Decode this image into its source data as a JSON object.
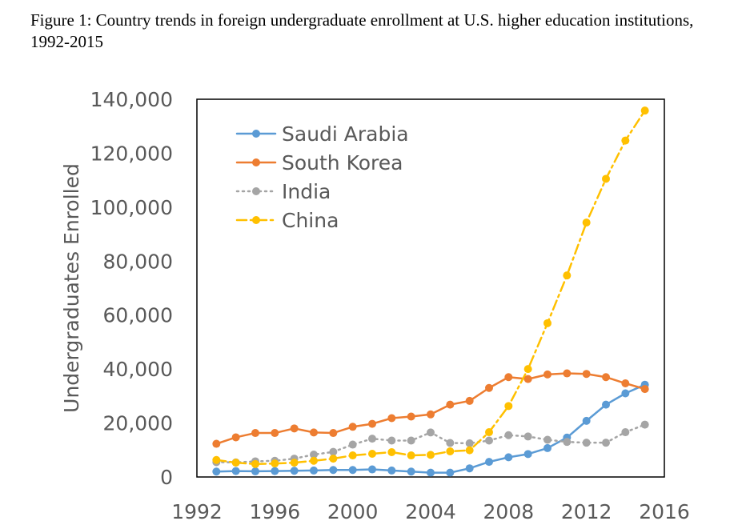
{
  "caption": "Figure 1: Country trends in foreign undergraduate enrollment at U.S. higher education institutions, 1992-2015",
  "chart_data": {
    "type": "line",
    "title": "Figure 1: Country trends in foreign undergraduate enrollment at U.S. higher education institutions, 1992-2015",
    "xlabel": "",
    "ylabel": "Undergraduates Enrolled",
    "xlim": [
      1992,
      2016
    ],
    "ylim": [
      0,
      140000
    ],
    "xticks": [
      1992,
      1996,
      2000,
      2004,
      2008,
      2012,
      2016
    ],
    "xtick_labels": [
      "1992",
      "1996",
      "2000",
      "2004",
      "2008",
      "2012",
      "2016"
    ],
    "yticks": [
      0,
      20000,
      40000,
      60000,
      80000,
      100000,
      120000,
      140000
    ],
    "ytick_labels": [
      "0",
      "20,000",
      "40,000",
      "60,000",
      "80,000",
      "100,000",
      "120,000",
      "140,000"
    ],
    "legend_position": "top-left",
    "grid": false,
    "x": [
      1993,
      1994,
      1995,
      1996,
      1997,
      1998,
      1999,
      2000,
      2001,
      2002,
      2003,
      2004,
      2005,
      2006,
      2007,
      2008,
      2009,
      2010,
      2011,
      2012,
      2013,
      2014,
      2015
    ],
    "series": [
      {
        "name": "Saudi Arabia",
        "color": "#5B9BD5",
        "dash": "solid",
        "values": [
          2000,
          2200,
          2100,
          2200,
          2300,
          2400,
          2600,
          2600,
          2800,
          2400,
          2000,
          1600,
          1600,
          3200,
          5600,
          7300,
          8500,
          10700,
          14600,
          20800,
          26800,
          31000,
          34200
        ]
      },
      {
        "name": "South Korea",
        "color": "#ED7D31",
        "dash": "solid",
        "values": [
          12300,
          14700,
          16300,
          16300,
          18000,
          16500,
          16300,
          18600,
          19700,
          21800,
          22400,
          23200,
          26800,
          28200,
          33000,
          37000,
          36300,
          38000,
          38400,
          38200,
          37000,
          34700,
          32600
        ]
      },
      {
        "name": "India",
        "color": "#A5A5A5",
        "dash": "dot",
        "values": [
          5500,
          5400,
          5800,
          6000,
          6800,
          8300,
          9300,
          12000,
          14200,
          13500,
          13500,
          16500,
          12600,
          12500,
          13500,
          15500,
          15000,
          13800,
          13000,
          12700,
          12700,
          16600,
          19400
        ]
      },
      {
        "name": "China",
        "color": "#FFC000",
        "dash": "dashdot",
        "values": [
          6300,
          5300,
          4800,
          5000,
          5300,
          6000,
          6800,
          8000,
          8600,
          9200,
          8000,
          8200,
          9500,
          9900,
          16600,
          26300,
          40000,
          57000,
          74700,
          94300,
          110500,
          124700,
          135800
        ]
      }
    ]
  }
}
